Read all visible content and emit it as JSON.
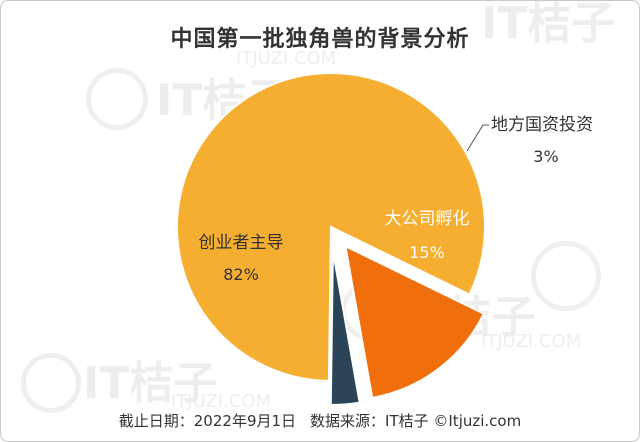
{
  "chart_data": {
    "type": "pie",
    "title": "中国第一批独角兽的背景分析",
    "slices": [
      {
        "label": "创业者主导",
        "value_label": "82%",
        "value": 82,
        "color": "#F5AE2F",
        "exploded": false
      },
      {
        "label": "地方国资投资",
        "value_label": "3%",
        "value": 3,
        "color": "#2B4458",
        "exploded": true
      },
      {
        "label": "大公司孵化",
        "value_label": "15%",
        "value": 15,
        "color": "#F06F0C",
        "exploded": true
      }
    ]
  },
  "watermark": {
    "text": "IT桔子",
    "sub": "ITJUZI.COM"
  },
  "footer": {
    "date_text": "截止日期：2022年9月1日",
    "source_text": "数据来源：IT桔子 ©Itjuzi.com"
  }
}
